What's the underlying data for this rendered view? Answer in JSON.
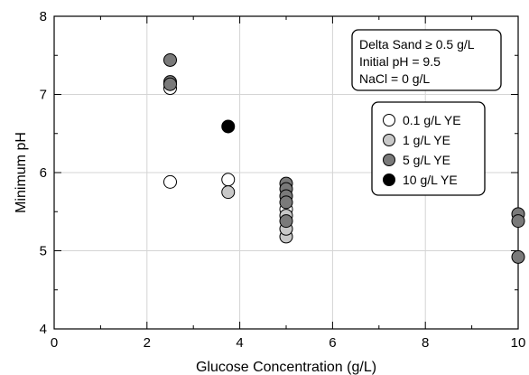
{
  "chart_data": {
    "type": "scatter",
    "title": "",
    "xlabel": "Glucose Concentration (g/L)",
    "ylabel": "Minimum pH",
    "xlim": [
      0,
      10
    ],
    "ylim": [
      4,
      8
    ],
    "xticks": [
      "0",
      "2",
      "4",
      "6",
      "8",
      "10"
    ],
    "yticks": [
      "4",
      "5",
      "6",
      "7",
      "8"
    ],
    "grid": true,
    "legend_position": "right",
    "annotation": [
      "Delta Sand ≥ 0.5 g/L",
      "Initial pH = 9.5",
      "NaCl = 0 g/L"
    ],
    "series": [
      {
        "name": "0.1 g/L YE",
        "color": "#ffffff",
        "points": [
          {
            "x": 2.5,
            "y": 5.88
          },
          {
            "x": 2.5,
            "y": 7.08
          },
          {
            "x": 3.75,
            "y": 5.91
          },
          {
            "x": 5.0,
            "y": 5.53
          }
        ]
      },
      {
        "name": "1 g/L YE",
        "color": "#c8c8c8",
        "points": [
          {
            "x": 3.75,
            "y": 5.75
          },
          {
            "x": 5.0,
            "y": 5.18
          },
          {
            "x": 5.0,
            "y": 5.28
          },
          {
            "x": 5.0,
            "y": 5.45
          }
        ]
      },
      {
        "name": "5 g/L YE",
        "color": "#7a7a7a",
        "points": [
          {
            "x": 2.5,
            "y": 7.44
          },
          {
            "x": 2.5,
            "y": 7.16
          },
          {
            "x": 2.5,
            "y": 7.13
          },
          {
            "x": 5.0,
            "y": 5.86
          },
          {
            "x": 5.0,
            "y": 5.79
          },
          {
            "x": 5.0,
            "y": 5.7
          },
          {
            "x": 5.0,
            "y": 5.62
          },
          {
            "x": 5.0,
            "y": 5.38
          },
          {
            "x": 10.0,
            "y": 5.47
          },
          {
            "x": 10.0,
            "y": 5.38
          },
          {
            "x": 10.0,
            "y": 4.92
          }
        ]
      },
      {
        "name": "10 g/L YE",
        "color": "#000000",
        "points": [
          {
            "x": 3.75,
            "y": 6.59
          }
        ]
      }
    ]
  }
}
